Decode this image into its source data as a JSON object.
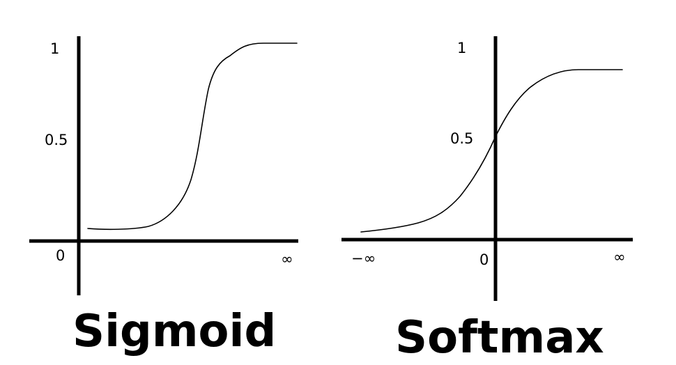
{
  "diagrams": [
    {
      "id": "sigmoid",
      "title": "Sigmoid",
      "y_labels": [
        "1",
        "0.5",
        "0"
      ],
      "x_labels": [
        "∞"
      ]
    },
    {
      "id": "softmax",
      "title": "Softmax",
      "y_labels": [
        "1",
        "0.5",
        "0"
      ],
      "x_labels": [
        "−∞",
        "∞"
      ]
    }
  ]
}
